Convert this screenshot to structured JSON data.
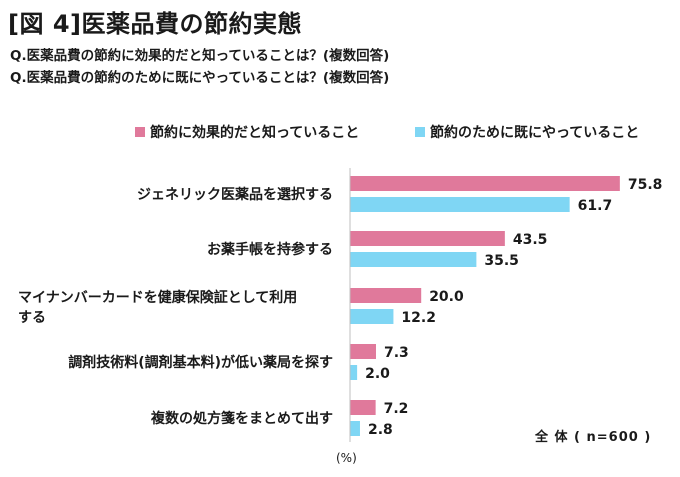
{
  "header": {
    "title": "[図 4]医薬品費の節約実態",
    "question1": "Q.医薬品費の節約に効果的だと知っていることは？(複数回答)",
    "question2": "Q.医薬品費の節約のために既にやっていることは？(複数回答)"
  },
  "colors": {
    "effective": "#e0799b",
    "doing": "#7fd6f4"
  },
  "chart_data": {
    "type": "bar",
    "orientation": "horizontal",
    "categories": [
      [
        "ジェネリック医薬品を選択する"
      ],
      [
        "お薬手帳を持参する"
      ],
      [
        "マイナンバーカードを健康保険証として利用",
        "する"
      ],
      [
        "調剤技術料(調剤基本料)が低い薬局を探す"
      ],
      [
        "複数の処方箋をまとめて出す"
      ]
    ],
    "series": [
      {
        "name": "節約に効果的だと知っていること",
        "values": [
          75.8,
          43.5,
          20.0,
          7.3,
          7.2
        ]
      },
      {
        "name": "節約のために既にやっていること",
        "values": [
          61.7,
          35.5,
          12.2,
          2.0,
          2.8
        ]
      }
    ],
    "value_labels": [
      [
        "75.8",
        "43.5",
        "20.0",
        "7.3",
        "7.2"
      ],
      [
        "61.7",
        "35.5",
        "12.2",
        "2.0",
        "2.8"
      ]
    ],
    "xlim": [
      0,
      80
    ],
    "unit": "(%)",
    "note": "全 体 ( n=600 )",
    "legend_position": "top",
    "grid": false
  }
}
